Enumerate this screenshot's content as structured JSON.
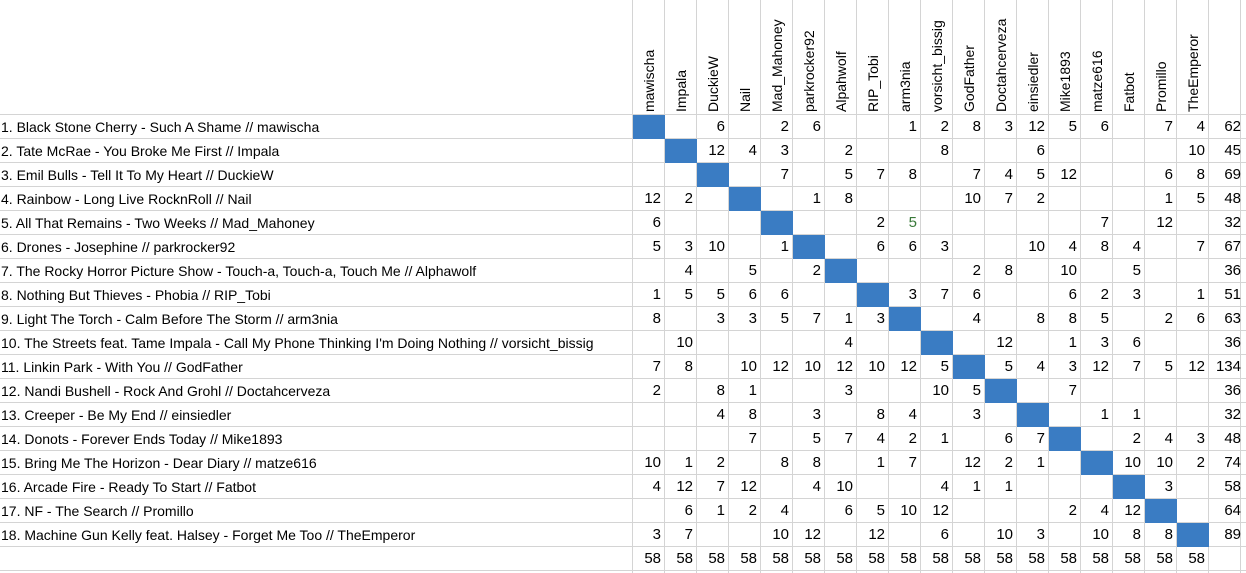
{
  "voters": [
    "mawischa",
    "Impala",
    "DuckieW",
    "Nail",
    "Mad_Mahoney",
    "parkrocker92",
    "Alpahwolf",
    "RIP_Tobi",
    "arm3nia",
    "vorsicht_bissig",
    "GodFather",
    "Doctahcerveza",
    "einsiedler",
    "Mike1893",
    "matze616",
    "Fatbot",
    "Promillo",
    "TheEmperor"
  ],
  "rows": [
    {
      "label": "1. Black Stone Cherry - Such A Shame // mawischa",
      "scores": [
        "",
        "",
        "6",
        "",
        "2",
        "6",
        "",
        "",
        "1",
        "2",
        "8",
        "3",
        "12",
        "5",
        "6",
        "",
        "7",
        "4"
      ],
      "total": "62"
    },
    {
      "label": "2. Tate McRae - You Broke Me First // Impala",
      "scores": [
        "",
        "",
        "12",
        "4",
        "3",
        "",
        "2",
        "",
        "",
        "8",
        "",
        "",
        "6",
        "",
        "",
        "",
        "",
        "10"
      ],
      "total": "45"
    },
    {
      "label": "3. Emil Bulls - Tell It To My Heart // DuckieW",
      "scores": [
        "",
        "",
        "",
        "",
        "7",
        "",
        "5",
        "7",
        "8",
        "",
        "7",
        "4",
        "5",
        "12",
        "",
        "",
        "6",
        "8"
      ],
      "total": "69"
    },
    {
      "label": "4. Rainbow - Long Live RocknRoll // Nail",
      "scores": [
        "12",
        "2",
        "",
        "",
        "",
        "1",
        "8",
        "",
        "",
        "",
        "10",
        "7",
        "2",
        "",
        "",
        "",
        "1",
        "5"
      ],
      "total": "48"
    },
    {
      "label": "5. All That Remains - Two Weeks // Mad_Mahoney",
      "scores": [
        "6",
        "",
        "",
        "",
        "",
        "",
        "",
        "2",
        "5",
        "",
        "",
        "",
        "",
        "",
        "7",
        "",
        "12",
        ""
      ],
      "total": "32"
    },
    {
      "label": "6. Drones - Josephine // parkrocker92",
      "scores": [
        "5",
        "3",
        "10",
        "",
        "1",
        "",
        "",
        "6",
        "6",
        "3",
        "",
        "",
        "10",
        "4",
        "8",
        "4",
        "",
        "7"
      ],
      "total": "67"
    },
    {
      "label": "7. The Rocky Horror Picture Show - Touch-a, Touch-a, Touch Me // Alphawolf",
      "scores": [
        "",
        "4",
        "",
        "5",
        "",
        "2",
        "",
        "",
        "",
        "",
        "2",
        "8",
        "",
        "10",
        "",
        "5",
        "",
        ""
      ],
      "total": "36"
    },
    {
      "label": "8. Nothing But Thieves - Phobia // RIP_Tobi",
      "scores": [
        "1",
        "5",
        "5",
        "6",
        "6",
        "",
        "",
        "",
        "3",
        "7",
        "6",
        "",
        "",
        "6",
        "2",
        "3",
        "",
        "1"
      ],
      "total": "51"
    },
    {
      "label": "9. Light The Torch - Calm Before The Storm // arm3nia",
      "scores": [
        "8",
        "",
        "3",
        "3",
        "5",
        "7",
        "1",
        "3",
        "",
        "",
        "4",
        "",
        "8",
        "8",
        "5",
        "",
        "2",
        "6"
      ],
      "total": "63"
    },
    {
      "label": "10. The Streets feat. Tame Impala - Call My Phone Thinking I'm Doing Nothing // vorsicht_bissig",
      "scores": [
        "",
        "10",
        "",
        "",
        "",
        "",
        "4",
        "",
        "",
        "",
        "",
        "12",
        "",
        "1",
        "3",
        "6",
        "",
        ""
      ],
      "total": "36"
    },
    {
      "label": "11. Linkin Park - With You // GodFather",
      "scores": [
        "7",
        "8",
        "",
        "10",
        "12",
        "10",
        "12",
        "10",
        "12",
        "5",
        "",
        "5",
        "4",
        "3",
        "12",
        "7",
        "5",
        "12"
      ],
      "total": "134"
    },
    {
      "label": "12. Nandi Bushell - Rock And Grohl // Doctahcerveza",
      "scores": [
        "2",
        "",
        "8",
        "1",
        "",
        "",
        "3",
        "",
        "",
        "10",
        "5",
        "",
        "",
        "7",
        "",
        "",
        "",
        ""
      ],
      "total": "36"
    },
    {
      "label": "13. Creeper - Be My End // einsiedler",
      "scores": [
        "",
        "",
        "4",
        "8",
        "",
        "3",
        "",
        "8",
        "4",
        "",
        "3",
        "",
        "",
        "",
        "1",
        "1",
        "",
        ""
      ],
      "total": "32"
    },
    {
      "label": "14. Donots - Forever Ends Today // Mike1893",
      "scores": [
        "",
        "",
        "",
        "7",
        "",
        "5",
        "7",
        "4",
        "2",
        "1",
        "",
        "6",
        "7",
        "",
        "",
        "2",
        "4",
        "3"
      ],
      "total": "48"
    },
    {
      "label": "15. Bring Me The Horizon - Dear Diary // matze616",
      "scores": [
        "10",
        "1",
        "2",
        "",
        "8",
        "8",
        "",
        "1",
        "7",
        "",
        "12",
        "2",
        "1",
        "",
        "",
        "10",
        "10",
        "2"
      ],
      "total": "74"
    },
    {
      "label": "16. Arcade Fire - Ready To Start // Fatbot",
      "scores": [
        "4",
        "12",
        "7",
        "12",
        "",
        "4",
        "10",
        "",
        "",
        "4",
        "1",
        "1",
        "",
        "",
        "",
        "",
        "3",
        ""
      ],
      "total": "58"
    },
    {
      "label": "17. NF - The Search // Promillo",
      "scores": [
        "",
        "6",
        "1",
        "2",
        "4",
        "",
        "6",
        "5",
        "10",
        "12",
        "",
        "",
        "",
        "2",
        "4",
        "12",
        "",
        ""
      ],
      "total": "64"
    },
    {
      "label": "18. Machine Gun Kelly feat. Halsey - Forget Me Too // TheEmperor",
      "scores": [
        "3",
        "7",
        "",
        "",
        "10",
        "12",
        "",
        "12",
        "",
        "6",
        "",
        "10",
        "3",
        "",
        "10",
        "8",
        "8",
        ""
      ],
      "total": "89"
    }
  ],
  "column_totals": [
    "58",
    "58",
    "58",
    "58",
    "58",
    "58",
    "58",
    "58",
    "58",
    "58",
    "58",
    "58",
    "58",
    "58",
    "58",
    "58",
    "58",
    "58"
  ],
  "colors": {
    "self_vote_fill": "#3a7cc3",
    "gridline": "#d4d4d4",
    "highlight_value": "#3a7a3a"
  }
}
